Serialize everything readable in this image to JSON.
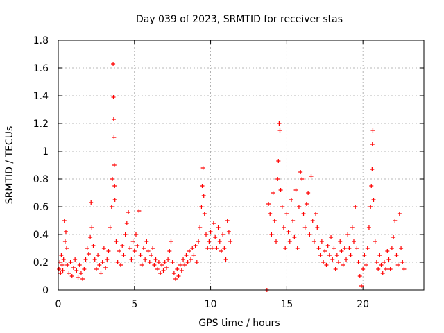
{
  "chart_data": {
    "type": "scatter",
    "title": "Day 039 of 2023, SRMTID for receiver stas",
    "xlabel": "GPS time / hours",
    "ylabel": "SRMTID / TECUs",
    "xlim": [
      0,
      24
    ],
    "ylim": [
      0,
      1.8
    ],
    "x_ticks": [
      0,
      5,
      10,
      15,
      20
    ],
    "x_tick_labels": [
      "0",
      "5",
      "10",
      "15",
      "20"
    ],
    "y_ticks": [
      0,
      0.2,
      0.4,
      0.6,
      0.8,
      1.0,
      1.2,
      1.4,
      1.6,
      1.8
    ],
    "y_tick_labels": [
      "0",
      "0.2",
      "0.4",
      "0.6",
      "0.8",
      "1",
      "1.2",
      "1.4",
      "1.6",
      "1.8"
    ],
    "grid": true,
    "marker": "+",
    "color": "#ff0000",
    "series": [
      {
        "name": "stas",
        "points": [
          [
            0.05,
            0.15
          ],
          [
            0.1,
            0.2
          ],
          [
            0.15,
            0.12
          ],
          [
            0.2,
            0.25
          ],
          [
            0.25,
            0.18
          ],
          [
            0.3,
            0.14
          ],
          [
            0.35,
            0.22
          ],
          [
            0.4,
            0.5
          ],
          [
            0.45,
            0.35
          ],
          [
            0.5,
            0.42
          ],
          [
            0.55,
            0.3
          ],
          [
            0.6,
            0.18
          ],
          [
            0.7,
            0.12
          ],
          [
            0.8,
            0.2
          ],
          [
            0.9,
            0.1
          ],
          [
            1.0,
            0.16
          ],
          [
            1.1,
            0.22
          ],
          [
            1.2,
            0.14
          ],
          [
            1.3,
            0.09
          ],
          [
            1.4,
            0.18
          ],
          [
            1.5,
            0.12
          ],
          [
            1.6,
            0.08
          ],
          [
            1.7,
            0.15
          ],
          [
            1.8,
            0.22
          ],
          [
            1.9,
            0.3
          ],
          [
            2.0,
            0.26
          ],
          [
            2.1,
            0.38
          ],
          [
            2.15,
            0.63
          ],
          [
            2.2,
            0.45
          ],
          [
            2.3,
            0.32
          ],
          [
            2.4,
            0.22
          ],
          [
            2.5,
            0.15
          ],
          [
            2.6,
            0.25
          ],
          [
            2.7,
            0.18
          ],
          [
            2.8,
            0.12
          ],
          [
            2.9,
            0.2
          ],
          [
            3.0,
            0.3
          ],
          [
            3.1,
            0.16
          ],
          [
            3.2,
            0.22
          ],
          [
            3.3,
            0.28
          ],
          [
            3.4,
            0.45
          ],
          [
            3.5,
            0.6
          ],
          [
            3.55,
            0.8
          ],
          [
            3.6,
            1.63
          ],
          [
            3.62,
            1.39
          ],
          [
            3.64,
            1.23
          ],
          [
            3.66,
            1.1
          ],
          [
            3.68,
            0.9
          ],
          [
            3.7,
            0.75
          ],
          [
            3.72,
            0.65
          ],
          [
            3.8,
            0.35
          ],
          [
            3.9,
            0.2
          ],
          [
            4.0,
            0.28
          ],
          [
            4.1,
            0.18
          ],
          [
            4.2,
            0.32
          ],
          [
            4.3,
            0.25
          ],
          [
            4.4,
            0.4
          ],
          [
            4.5,
            0.48
          ],
          [
            4.6,
            0.56
          ],
          [
            4.7,
            0.3
          ],
          [
            4.8,
            0.22
          ],
          [
            4.9,
            0.35
          ],
          [
            5.0,
            0.28
          ],
          [
            5.1,
            0.4
          ],
          [
            5.2,
            0.32
          ],
          [
            5.3,
            0.57
          ],
          [
            5.4,
            0.25
          ],
          [
            5.5,
            0.18
          ],
          [
            5.6,
            0.3
          ],
          [
            5.7,
            0.22
          ],
          [
            5.8,
            0.35
          ],
          [
            5.9,
            0.28
          ],
          [
            6.0,
            0.2
          ],
          [
            6.1,
            0.25
          ],
          [
            6.2,
            0.3
          ],
          [
            6.3,
            0.18
          ],
          [
            6.4,
            0.22
          ],
          [
            6.5,
            0.15
          ],
          [
            6.6,
            0.2
          ],
          [
            6.7,
            0.12
          ],
          [
            6.8,
            0.18
          ],
          [
            6.9,
            0.14
          ],
          [
            7.0,
            0.2
          ],
          [
            7.1,
            0.16
          ],
          [
            7.2,
            0.22
          ],
          [
            7.3,
            0.28
          ],
          [
            7.4,
            0.35
          ],
          [
            7.5,
            0.2
          ],
          [
            7.6,
            0.12
          ],
          [
            7.7,
            0.08
          ],
          [
            7.8,
            0.15
          ],
          [
            7.9,
            0.1
          ],
          [
            8.0,
            0.18
          ],
          [
            8.1,
            0.14
          ],
          [
            8.2,
            0.22
          ],
          [
            8.3,
            0.18
          ],
          [
            8.4,
            0.25
          ],
          [
            8.5,
            0.2
          ],
          [
            8.6,
            0.28
          ],
          [
            8.7,
            0.22
          ],
          [
            8.8,
            0.3
          ],
          [
            8.9,
            0.25
          ],
          [
            9.0,
            0.32
          ],
          [
            9.1,
            0.2
          ],
          [
            9.2,
            0.35
          ],
          [
            9.3,
            0.45
          ],
          [
            9.4,
            0.6
          ],
          [
            9.45,
            0.75
          ],
          [
            9.5,
            0.88
          ],
          [
            9.55,
            0.68
          ],
          [
            9.6,
            0.55
          ],
          [
            9.7,
            0.4
          ],
          [
            9.8,
            0.3
          ],
          [
            9.9,
            0.35
          ],
          [
            10.0,
            0.42
          ],
          [
            10.1,
            0.3
          ],
          [
            10.2,
            0.48
          ],
          [
            10.3,
            0.38
          ],
          [
            10.4,
            0.3
          ],
          [
            10.5,
            0.45
          ],
          [
            10.6,
            0.35
          ],
          [
            10.7,
            0.28
          ],
          [
            10.8,
            0.4
          ],
          [
            10.9,
            0.3
          ],
          [
            11.0,
            0.22
          ],
          [
            11.1,
            0.5
          ],
          [
            11.2,
            0.42
          ],
          [
            11.3,
            0.35
          ],
          [
            13.7,
            0.0
          ],
          [
            13.8,
            0.62
          ],
          [
            13.9,
            0.55
          ],
          [
            14.0,
            0.4
          ],
          [
            14.1,
            0.7
          ],
          [
            14.2,
            0.5
          ],
          [
            14.3,
            0.35
          ],
          [
            14.4,
            0.8
          ],
          [
            14.45,
            0.93
          ],
          [
            14.5,
            1.2
          ],
          [
            14.55,
            1.15
          ],
          [
            14.6,
            0.72
          ],
          [
            14.7,
            0.6
          ],
          [
            14.8,
            0.45
          ],
          [
            14.9,
            0.3
          ],
          [
            15.0,
            0.55
          ],
          [
            15.1,
            0.42
          ],
          [
            15.2,
            0.35
          ],
          [
            15.3,
            0.65
          ],
          [
            15.4,
            0.5
          ],
          [
            15.5,
            0.38
          ],
          [
            15.6,
            0.72
          ],
          [
            15.7,
            0.3
          ],
          [
            15.8,
            0.6
          ],
          [
            15.9,
            0.85
          ],
          [
            16.0,
            0.8
          ],
          [
            16.1,
            0.55
          ],
          [
            16.2,
            0.45
          ],
          [
            16.3,
            0.62
          ],
          [
            16.4,
            0.7
          ],
          [
            16.5,
            0.4
          ],
          [
            16.6,
            0.82
          ],
          [
            16.7,
            0.5
          ],
          [
            16.8,
            0.35
          ],
          [
            16.9,
            0.55
          ],
          [
            17.0,
            0.45
          ],
          [
            17.1,
            0.3
          ],
          [
            17.2,
            0.25
          ],
          [
            17.3,
            0.35
          ],
          [
            17.4,
            0.2
          ],
          [
            17.5,
            0.28
          ],
          [
            17.6,
            0.18
          ],
          [
            17.7,
            0.32
          ],
          [
            17.8,
            0.25
          ],
          [
            17.9,
            0.38
          ],
          [
            18.0,
            0.22
          ],
          [
            18.1,
            0.3
          ],
          [
            18.2,
            0.15
          ],
          [
            18.3,
            0.25
          ],
          [
            18.4,
            0.2
          ],
          [
            18.5,
            0.35
          ],
          [
            18.6,
            0.28
          ],
          [
            18.7,
            0.18
          ],
          [
            18.8,
            0.3
          ],
          [
            18.9,
            0.22
          ],
          [
            19.0,
            0.4
          ],
          [
            19.1,
            0.3
          ],
          [
            19.2,
            0.25
          ],
          [
            19.3,
            0.45
          ],
          [
            19.4,
            0.35
          ],
          [
            19.5,
            0.6
          ],
          [
            19.6,
            0.3
          ],
          [
            19.7,
            0.2
          ],
          [
            19.8,
            0.1
          ],
          [
            19.9,
            0.03
          ],
          [
            20.0,
            0.15
          ],
          [
            20.1,
            0.25
          ],
          [
            20.2,
            0.18
          ],
          [
            20.3,
            0.3
          ],
          [
            20.4,
            0.45
          ],
          [
            20.5,
            0.6
          ],
          [
            20.55,
            0.75
          ],
          [
            20.6,
            0.87
          ],
          [
            20.62,
            1.05
          ],
          [
            20.65,
            1.15
          ],
          [
            20.7,
            0.65
          ],
          [
            20.8,
            0.35
          ],
          [
            20.9,
            0.2
          ],
          [
            21.0,
            0.15
          ],
          [
            21.1,
            0.25
          ],
          [
            21.2,
            0.18
          ],
          [
            21.3,
            0.12
          ],
          [
            21.4,
            0.2
          ],
          [
            21.5,
            0.15
          ],
          [
            21.6,
            0.28
          ],
          [
            21.7,
            0.22
          ],
          [
            21.8,
            0.15
          ],
          [
            21.9,
            0.3
          ],
          [
            22.0,
            0.38
          ],
          [
            22.1,
            0.5
          ],
          [
            22.2,
            0.25
          ],
          [
            22.3,
            0.18
          ],
          [
            22.4,
            0.55
          ],
          [
            22.5,
            0.3
          ],
          [
            22.6,
            0.2
          ],
          [
            22.7,
            0.15
          ]
        ]
      }
    ]
  }
}
